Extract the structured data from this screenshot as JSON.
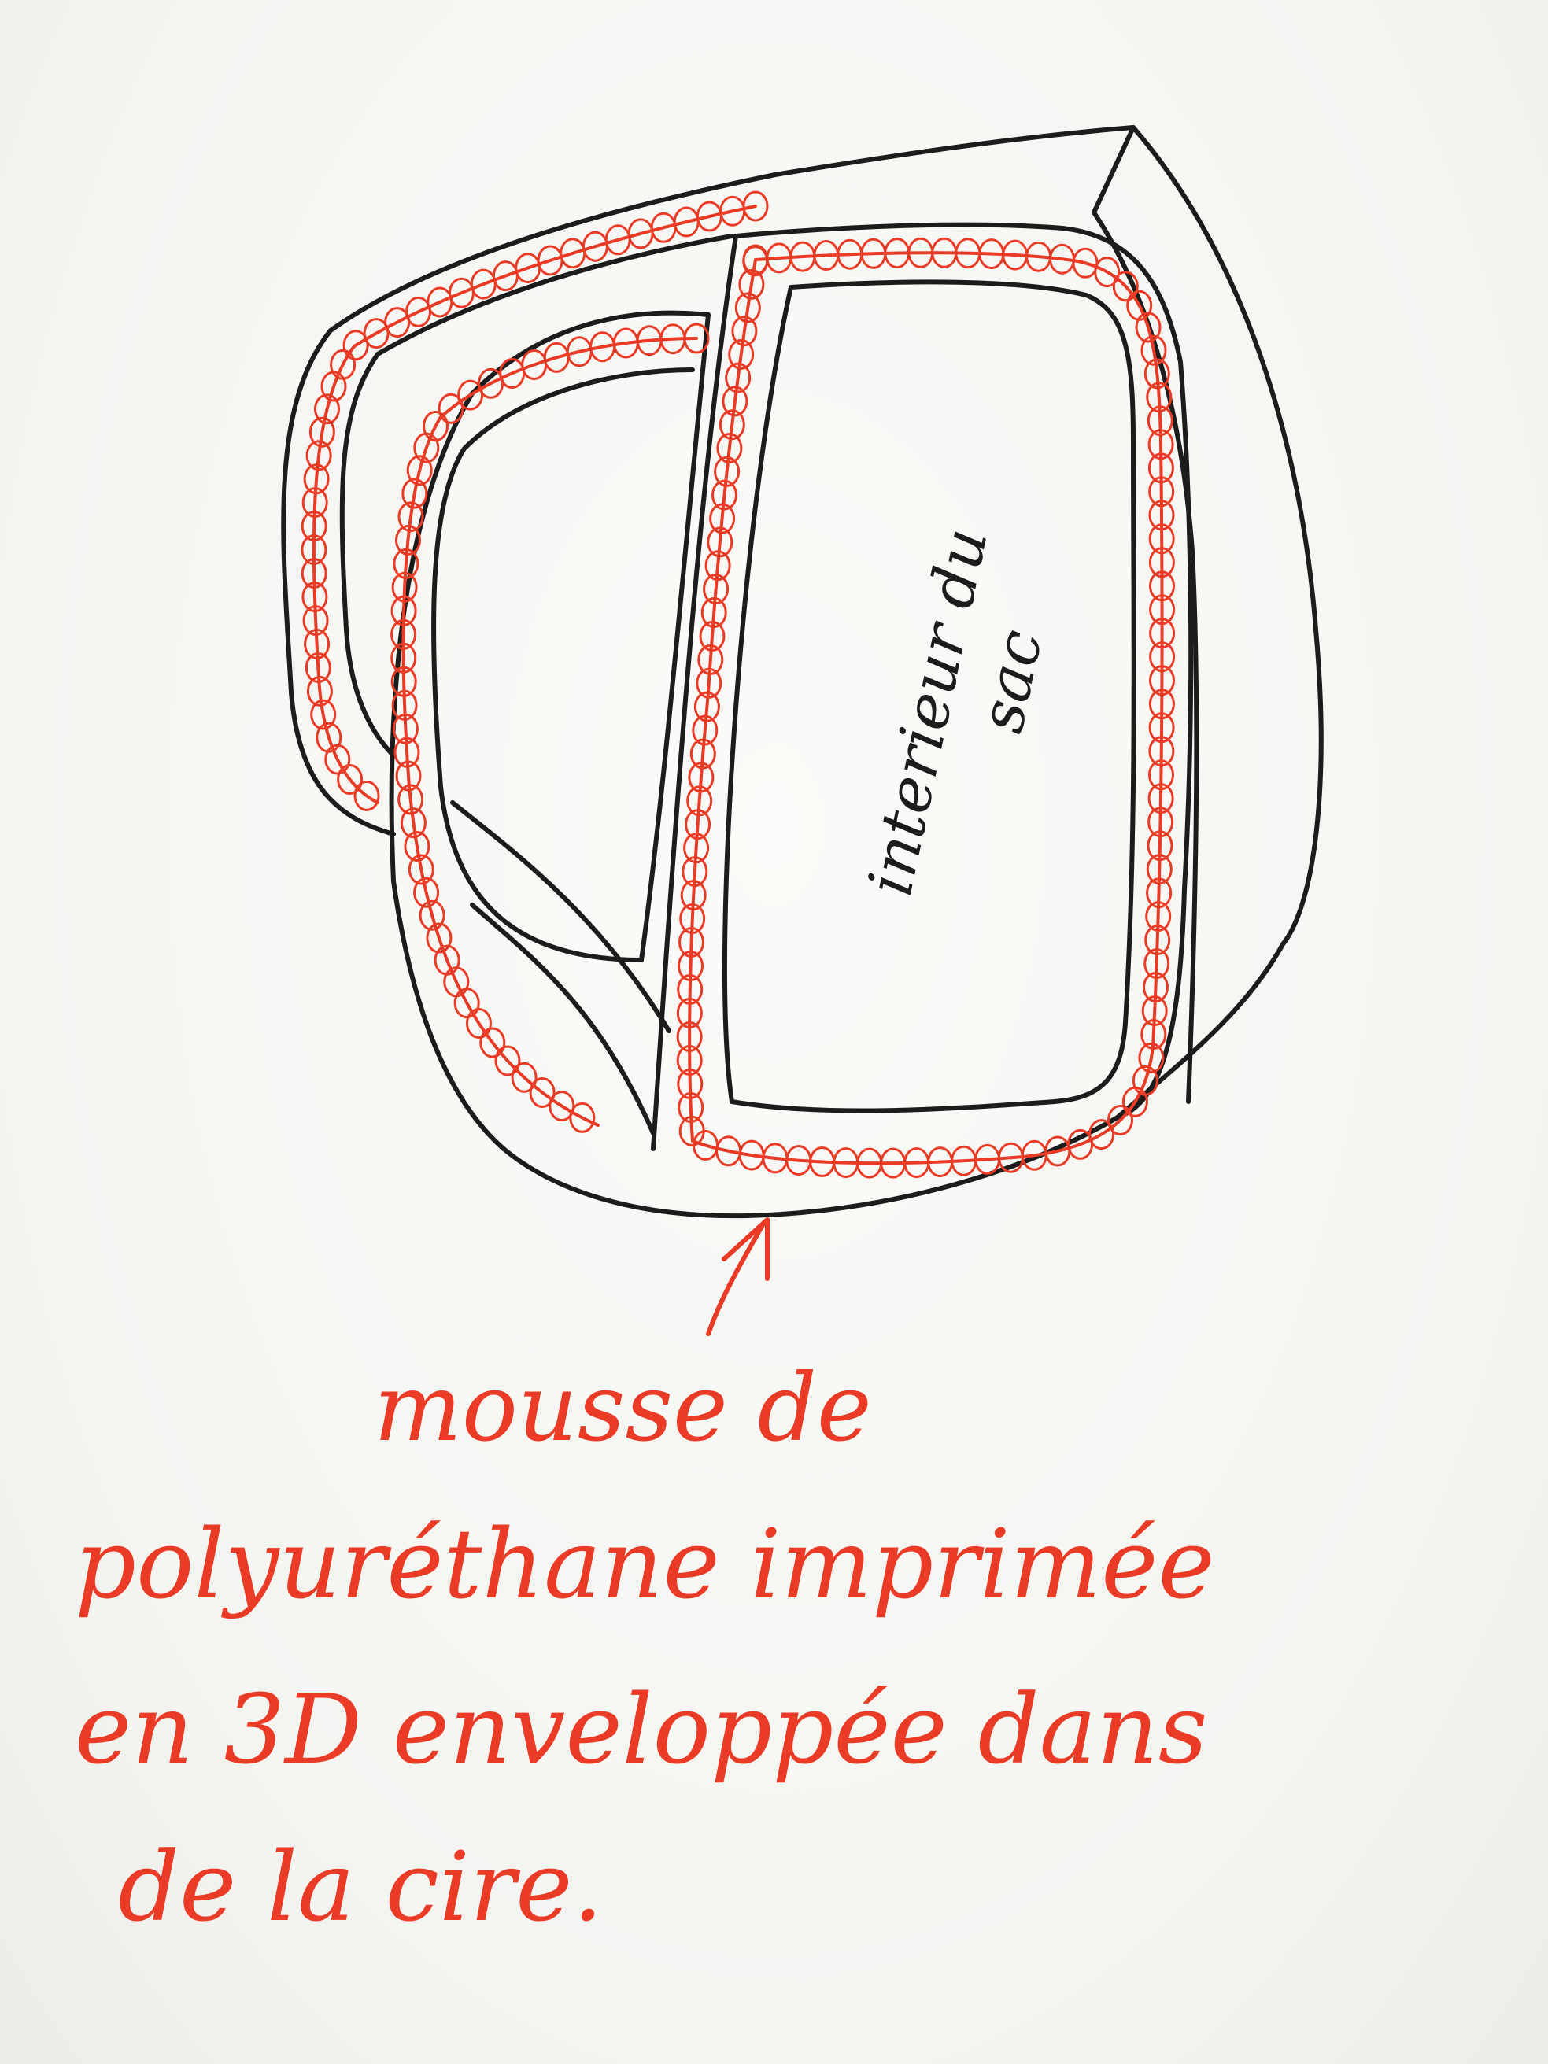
{
  "diagram": {
    "interior_label": {
      "line1": "interieur du",
      "line2": "sac"
    },
    "foam_label": {
      "line1": "mousse de",
      "line2": "polyuréthane imprimée",
      "line3": "en 3D enveloppée dans",
      "line4": "de la cire."
    },
    "colors": {
      "ink": "#1c1c1c",
      "foam": "#ea3b26",
      "paper": "#f7f7f5"
    }
  }
}
